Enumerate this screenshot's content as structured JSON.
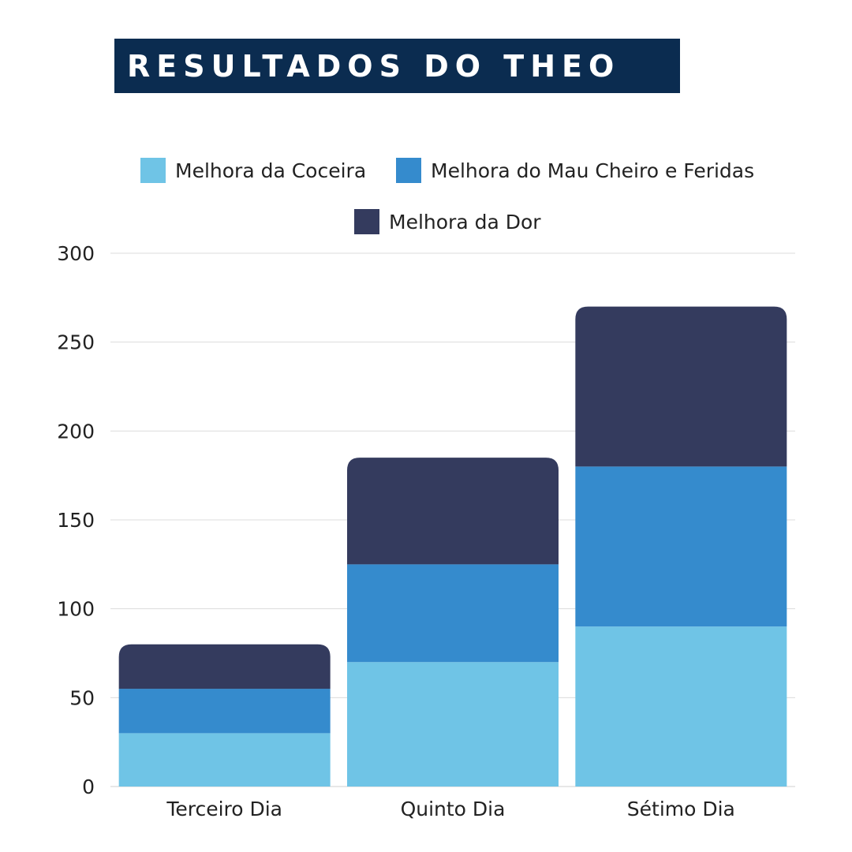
{
  "header": {
    "title": "RESULTADOS DO THEO"
  },
  "chart_data": {
    "type": "bar",
    "stacked": true,
    "title": "RESULTADOS DO THEO",
    "categories": [
      "Terceiro Dia",
      "Quinto Dia",
      "Sétimo Dia"
    ],
    "series": [
      {
        "name": "Melhora da Coceira",
        "color": "#6fc4e6",
        "values": [
          30,
          70,
          90
        ]
      },
      {
        "name": "Melhora do Mau Cheiro e Feridas",
        "color": "#358bcd",
        "values": [
          25,
          55,
          90
        ]
      },
      {
        "name": "Melhora da Dor",
        "color": "#343b5e",
        "values": [
          25,
          60,
          90
        ]
      }
    ],
    "ylim": [
      0,
      300
    ],
    "yticks": [
      0,
      50,
      100,
      150,
      200,
      250,
      300
    ],
    "xlabel": "",
    "ylabel": "",
    "grid": true,
    "legend_position": "top"
  }
}
